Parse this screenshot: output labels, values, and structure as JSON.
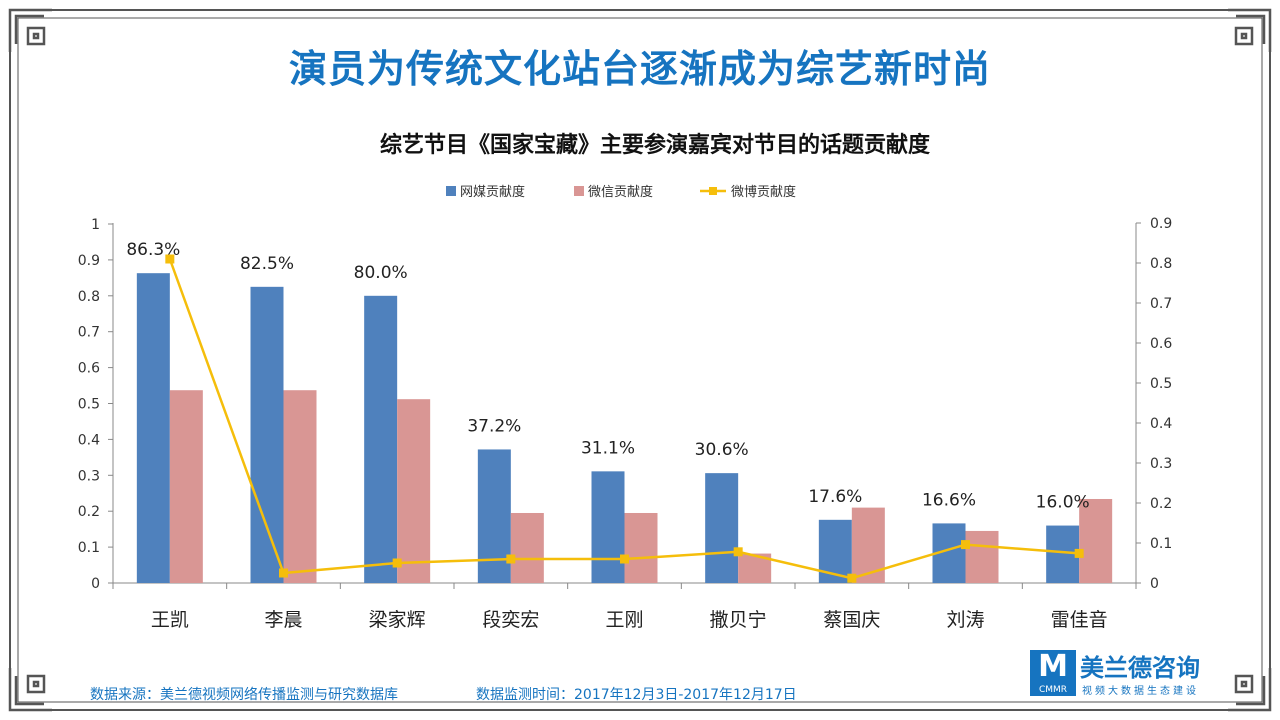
{
  "page": {
    "title": "演员为传统文化站台逐渐成为综艺新时尚",
    "footer_source": "数据来源：美兰德视频网络传播监测与研究数据库",
    "footer_period": "数据监测时间：2017年12月3日-2017年12月17日"
  },
  "logo": {
    "mark": "M",
    "mark_sub": "CMMR",
    "name": "美兰德咨询",
    "tagline": "视频大数据生态建设"
  },
  "colors": {
    "title": "#1674c0",
    "series_web": "#4f81bd",
    "series_wechat": "#d99694",
    "series_weibo": "#f5be0b"
  },
  "chart_data": {
    "type": "bar",
    "title": "综艺节目《国家宝藏》主要参演嘉宾对节目的话题贡献度",
    "legend_position": "top-center",
    "grid": false,
    "categories": [
      "王凯",
      "李晨",
      "梁家辉",
      "段奕宏",
      "王刚",
      "撒贝宁",
      "蔡国庆",
      "刘涛",
      "雷佳音"
    ],
    "ylim_left": [
      0,
      1
    ],
    "yticks_left": [
      "0",
      "0.1",
      "0.2",
      "0.3",
      "0.4",
      "0.5",
      "0.6",
      "0.7",
      "0.8",
      "0.9",
      "1"
    ],
    "ylim_right": [
      0,
      0.9
    ],
    "yticks_right": [
      "0",
      "0.1",
      "0.2",
      "0.3",
      "0.4",
      "0.5",
      "0.6",
      "0.7",
      "0.8",
      "0.9"
    ],
    "data_labels": [
      "86.3%",
      "82.5%",
      "80.0%",
      "37.2%",
      "31.1%",
      "30.6%",
      "17.6%",
      "16.6%",
      "16.0%"
    ],
    "series": [
      {
        "name": "网媒贡献度",
        "type": "bar",
        "axis": "left",
        "values": [
          0.863,
          0.825,
          0.8,
          0.372,
          0.311,
          0.306,
          0.176,
          0.166,
          0.16
        ]
      },
      {
        "name": "微信贡献度",
        "type": "bar",
        "axis": "left",
        "values": [
          0.537,
          0.537,
          0.512,
          0.195,
          0.195,
          0.082,
          0.21,
          0.145,
          0.234
        ]
      },
      {
        "name": "微博贡献度",
        "type": "line",
        "axis": "right",
        "values": [
          0.81,
          0.025,
          0.05,
          0.06,
          0.06,
          0.078,
          0.012,
          0.096,
          0.074
        ]
      }
    ]
  }
}
